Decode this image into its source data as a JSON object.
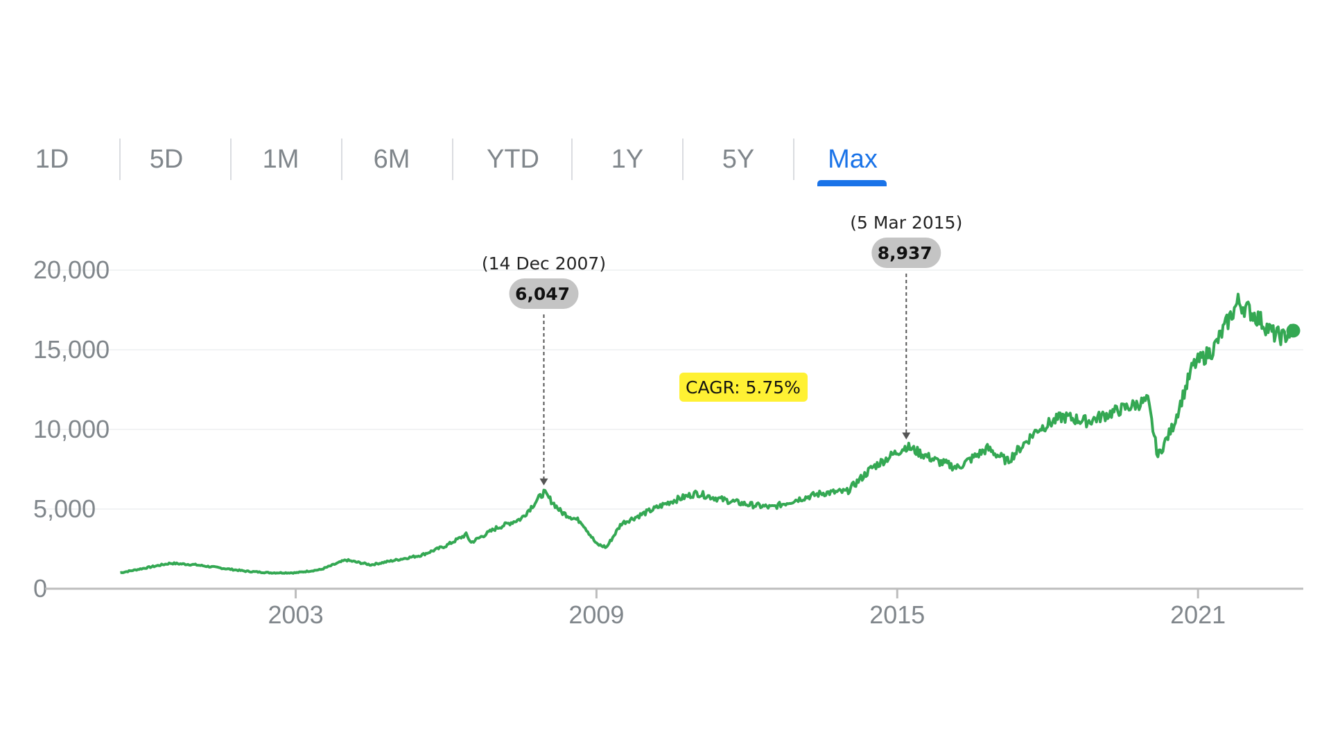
{
  "tabs": {
    "items": [
      "1D",
      "5D",
      "1M",
      "6M",
      "YTD",
      "1Y",
      "5Y",
      "Max"
    ],
    "selected": "Max"
  },
  "annotations": {
    "cagr": "CAGR: 5.75%",
    "points": [
      {
        "date_label": "(14 Dec 2007)",
        "value_label": "6,047",
        "x": 2007.95,
        "y": 6047
      },
      {
        "date_label": "(5 Mar 2015)",
        "value_label": "8,937",
        "x": 2015.18,
        "y": 8937
      }
    ]
  },
  "colors": {
    "line": "#34a853",
    "tab_active": "#1a73e8",
    "tab_inactive": "#80868b",
    "cagr_highlight": "#fff133",
    "annotation_pill": "#c4c4c4"
  },
  "chart_data": {
    "type": "area",
    "title": "",
    "xlabel": "",
    "ylabel": "",
    "xlim": [
      1998,
      2023.1
    ],
    "ylim": [
      0,
      20000
    ],
    "grid": true,
    "x_ticks": [
      2003,
      2009,
      2015,
      2021
    ],
    "x_tick_labels": [
      "2003",
      "2009",
      "2015",
      "2021"
    ],
    "y_ticks": [
      0,
      5000,
      10000,
      15000,
      20000
    ],
    "y_tick_labels": [
      "0",
      "5,000",
      "10,000",
      "15,000",
      "20,000"
    ],
    "series": [
      {
        "x": [
          1999.5,
          2000.0,
          2000.5,
          2001.0,
          2001.5,
          2002.0,
          2002.5,
          2003.0,
          2003.5,
          2004.0,
          2004.5,
          2005.0,
          2005.5,
          2006.0,
          2006.4,
          2006.5,
          2007.0,
          2007.5,
          2007.95,
          2008.3,
          2008.7,
          2009.0,
          2009.2,
          2009.5,
          2010.0,
          2010.5,
          2011.0,
          2011.5,
          2012.0,
          2012.5,
          2013.0,
          2013.5,
          2014.0,
          2014.5,
          2015.18,
          2015.8,
          2016.2,
          2016.8,
          2017.2,
          2017.8,
          2018.3,
          2018.8,
          2019.5,
          2020.0,
          2020.2,
          2020.5,
          2020.9,
          2021.3,
          2021.8,
          2022.2,
          2022.5,
          2022.7,
          2022.9
        ],
        "values": [
          1000,
          1300,
          1600,
          1500,
          1300,
          1100,
          1000,
          1000,
          1200,
          1800,
          1500,
          1800,
          2100,
          2700,
          3400,
          2900,
          3800,
          4400,
          6047,
          4800,
          4200,
          2800,
          2600,
          4100,
          4800,
          5500,
          6000,
          5600,
          5300,
          5100,
          5600,
          6000,
          6100,
          7600,
          8937,
          8000,
          7600,
          8800,
          8000,
          10000,
          10800,
          10500,
          11300,
          11800,
          8300,
          10200,
          14000,
          15000,
          18000,
          17000,
          16000,
          15800,
          16200
        ]
      }
    ]
  }
}
